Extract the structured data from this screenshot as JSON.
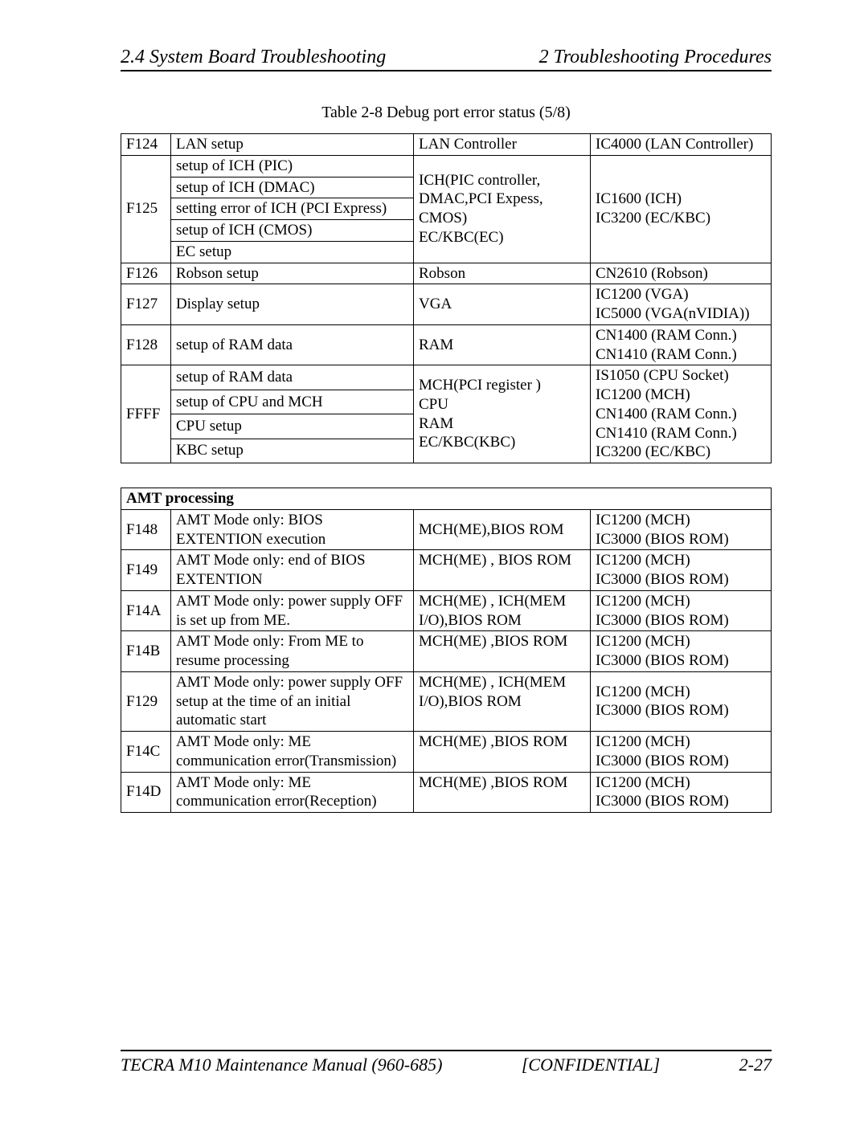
{
  "header": {
    "left": "2.4 System Board Troubleshooting",
    "right": "2 Troubleshooting Procedures"
  },
  "caption": "Table 2-8  Debug port error status (5/8)",
  "table1": {
    "r1": {
      "c0": "F124",
      "c1": "LAN setup",
      "c2": "LAN Controller",
      "c3": "IC4000 (LAN Controller)"
    },
    "r2": {
      "c0": "F125",
      "c1a": "setup of ICH (PIC)",
      "c1b": "setup of ICH (DMAC)",
      "c1c": "setting error of ICH (PCI Express)",
      "c1d": "setup of ICH (CMOS)",
      "c1e": "EC setup",
      "c2": "ICH(PIC controller, DMAC,PCI Expess, CMOS)\nEC/KBC(EC)",
      "c3": "IC1600 (ICH)\nIC3200 (EC/KBC)"
    },
    "r3": {
      "c0": "F126",
      "c1": "Robson setup",
      "c2": "Robson",
      "c3": "CN2610 (Robson)"
    },
    "r4": {
      "c0": "F127",
      "c1": "Display setup",
      "c2": "VGA",
      "c3": "IC1200 (VGA)\nIC5000 (VGA(nVIDIA))"
    },
    "r5": {
      "c0": "F128",
      "c1": "setup of RAM data",
      "c2": "RAM",
      "c3": "CN1400 (RAM Conn.)\nCN1410 (RAM Conn.)"
    },
    "r6": {
      "c0": "FFFF",
      "c1a": "setup of RAM data",
      "c1b": "setup of CPU and MCH",
      "c1c": "CPU setup",
      "c1d": "KBC setup",
      "c2": "MCH(PCI register )\nCPU\nRAM\nEC/KBC(KBC)",
      "c3": "IS1050 (CPU Socket)\nIC1200 (MCH)\nCN1400 (RAM Conn.)\nCN1410 (RAM Conn.)\nIC3200 (EC/KBC)"
    }
  },
  "section2_title": "AMT processing",
  "table2": {
    "r1": {
      "c0": "F148",
      "c1": "AMT Mode only: BIOS EXTENTION execution",
      "c2": "MCH(ME),BIOS ROM",
      "c3": "IC1200 (MCH)\nIC3000 (BIOS ROM)"
    },
    "r2": {
      "c0": "F149",
      "c1": "AMT Mode only: end of BIOS EXTENTION",
      "c2": "MCH(ME) , BIOS ROM",
      "c3": "IC1200 (MCH)\nIC3000 (BIOS ROM)"
    },
    "r3": {
      "c0": "F14A",
      "c1": "AMT Mode only: power supply OFF is set up from ME.",
      "c2": "MCH(ME) , ICH(MEM I/O),BIOS ROM",
      "c3": "IC1200 (MCH)\nIC3000 (BIOS ROM)"
    },
    "r4": {
      "c0": "F14B",
      "c1": "AMT Mode only: From ME to resume processing",
      "c2": "MCH(ME) ,BIOS ROM",
      "c3": "IC1200 (MCH)\nIC3000 (BIOS ROM)"
    },
    "r5": {
      "c0": "F129",
      "c1": "AMT Mode only: power supply OFF setup at the time of an initial automatic start",
      "c2": "MCH(ME) , ICH(MEM I/O),BIOS ROM",
      "c3": "IC1200 (MCH)\nIC3000 (BIOS ROM)"
    },
    "r6": {
      "c0": "F14C",
      "c1": "AMT Mode only: ME communication error(Transmission)",
      "c2": "MCH(ME) ,BIOS ROM",
      "c3": "IC1200 (MCH)\nIC3000 (BIOS ROM)"
    },
    "r7": {
      "c0": "F14D",
      "c1": "AMT Mode only: ME communication error(Reception)",
      "c2": "MCH(ME) ,BIOS ROM",
      "c3": "IC1200 (MCH)\nIC3000 (BIOS ROM)"
    }
  },
  "footer": {
    "left": "TECRA M10 Maintenance Manual (960-685)",
    "center": "[CONFIDENTIAL]",
    "right": "2-27"
  }
}
